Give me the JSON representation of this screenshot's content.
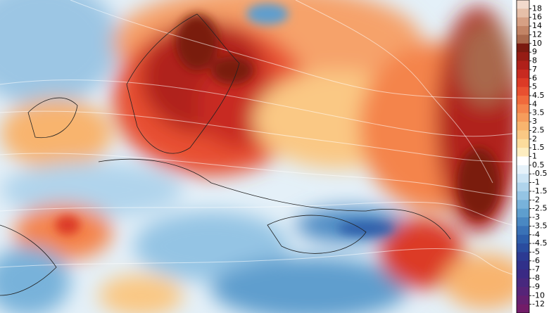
{
  "colorbar": {
    "labels": [
      18,
      16,
      14,
      12,
      10,
      9,
      8,
      7,
      6,
      5,
      4.5,
      4,
      3.5,
      3,
      2.5,
      2,
      1.5,
      1,
      0.5,
      -0.5,
      -1,
      -1.5,
      -2,
      -2.5,
      -3,
      -3.5,
      -4,
      -4.5,
      -5,
      -6,
      -7,
      -8,
      -9,
      -10,
      -12
    ],
    "colors": [
      "#f2d9cc",
      "#e6bfa8",
      "#d6a084",
      "#c28466",
      "#a9684c",
      "#7a1a10",
      "#961c14",
      "#b0201a",
      "#c82a20",
      "#dc3a26",
      "#e85030",
      "#f06a3c",
      "#f4844c",
      "#f69c5c",
      "#f8b46e",
      "#fac884",
      "#fcdc9c",
      "#fdedc0",
      "#ffffff",
      "#e6f2fa",
      "#cce4f4",
      "#b0d4ec",
      "#94c4e4",
      "#78b2da",
      "#5e9ece",
      "#4a88c2",
      "#3a72b6",
      "#2e5eaa",
      "#2a4c9e",
      "#2c3a92",
      "#30308a",
      "#3a2a84",
      "#48287e",
      "#562478",
      "#642070",
      "#721c68"
    ]
  }
}
